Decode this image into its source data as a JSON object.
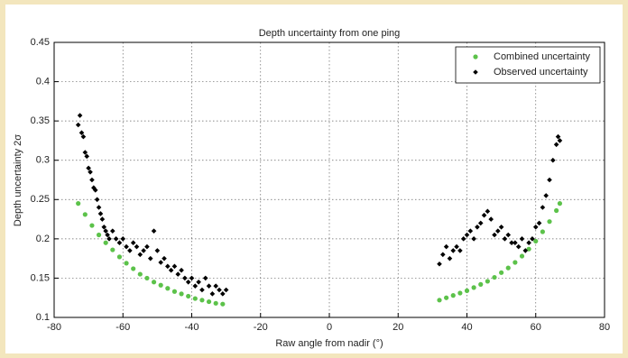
{
  "chart_data": {
    "type": "scatter",
    "title": "Depth uncertainty from one ping",
    "x_label": "Raw angle from nadir (°)",
    "y_label": "Depth uncertainty 2σ",
    "xlim": [
      -80,
      80
    ],
    "ylim": [
      0.1,
      0.45
    ],
    "xticks": [
      -80,
      -60,
      -40,
      -20,
      0,
      20,
      40,
      60,
      80
    ],
    "yticks": [
      0.1,
      0.15,
      0.2,
      0.25,
      0.3,
      0.35,
      0.4,
      0.45
    ],
    "grid": true,
    "legend": "upper right",
    "series": [
      {
        "name": "Combined uncertainty",
        "color": "#5cc24a",
        "marker": "circle",
        "x": [
          -73,
          -71,
          -69,
          -67,
          -65,
          -63,
          -61,
          -59,
          -57,
          -55,
          -53,
          -51,
          -49,
          -47,
          -45,
          -43,
          -41,
          -39,
          -37,
          -35,
          -33,
          -31,
          32,
          34,
          36,
          38,
          40,
          42,
          44,
          46,
          48,
          50,
          52,
          54,
          56,
          58,
          60,
          62,
          64,
          66,
          67
        ],
        "values": [
          0.245,
          0.231,
          0.217,
          0.205,
          0.195,
          0.186,
          0.177,
          0.169,
          0.162,
          0.155,
          0.15,
          0.145,
          0.141,
          0.137,
          0.133,
          0.13,
          0.127,
          0.124,
          0.122,
          0.12,
          0.118,
          0.117,
          0.122,
          0.125,
          0.128,
          0.131,
          0.134,
          0.138,
          0.142,
          0.146,
          0.151,
          0.157,
          0.163,
          0.17,
          0.178,
          0.187,
          0.197,
          0.209,
          0.222,
          0.236,
          0.245
        ]
      },
      {
        "name": "Observed uncertainty",
        "color": "#000000",
        "marker": "diamond",
        "x": [
          -73,
          -72.5,
          -72,
          -71.5,
          -71,
          -70.5,
          -70,
          -69.5,
          -69,
          -68.5,
          -68,
          -67.5,
          -67,
          -66.5,
          -66,
          -65.5,
          -65,
          -64.5,
          -64,
          -63,
          -62,
          -61,
          -60,
          -59,
          -58,
          -57,
          -56,
          -55,
          -54,
          -53,
          -52,
          -51,
          -50,
          -49,
          -48,
          -47,
          -46,
          -45,
          -44,
          -43,
          -42,
          -41,
          -40,
          -39,
          -38,
          -37,
          -36,
          -35,
          -34,
          -33,
          -32,
          -31,
          -30,
          32,
          33,
          34,
          35,
          36,
          37,
          38,
          39,
          40,
          41,
          42,
          43,
          44,
          45,
          46,
          47,
          48,
          49,
          50,
          51,
          52,
          53,
          54,
          55,
          56,
          57,
          58,
          59,
          60,
          61,
          62,
          63,
          64,
          65,
          66,
          66.5,
          67
        ],
        "values": [
          0.345,
          0.357,
          0.335,
          0.33,
          0.31,
          0.305,
          0.29,
          0.285,
          0.275,
          0.265,
          0.262,
          0.25,
          0.24,
          0.232,
          0.225,
          0.215,
          0.21,
          0.205,
          0.2,
          0.21,
          0.2,
          0.195,
          0.2,
          0.19,
          0.185,
          0.195,
          0.19,
          0.18,
          0.185,
          0.19,
          0.175,
          0.21,
          0.185,
          0.17,
          0.175,
          0.165,
          0.16,
          0.165,
          0.155,
          0.16,
          0.15,
          0.145,
          0.15,
          0.14,
          0.145,
          0.135,
          0.15,
          0.14,
          0.13,
          0.14,
          0.135,
          0.13,
          0.135,
          0.168,
          0.18,
          0.19,
          0.175,
          0.185,
          0.19,
          0.185,
          0.2,
          0.205,
          0.21,
          0.2,
          0.215,
          0.22,
          0.23,
          0.235,
          0.225,
          0.205,
          0.21,
          0.215,
          0.2,
          0.205,
          0.195,
          0.195,
          0.19,
          0.2,
          0.185,
          0.195,
          0.2,
          0.215,
          0.22,
          0.24,
          0.255,
          0.275,
          0.3,
          0.32,
          0.33,
          0.325
        ]
      }
    ]
  }
}
